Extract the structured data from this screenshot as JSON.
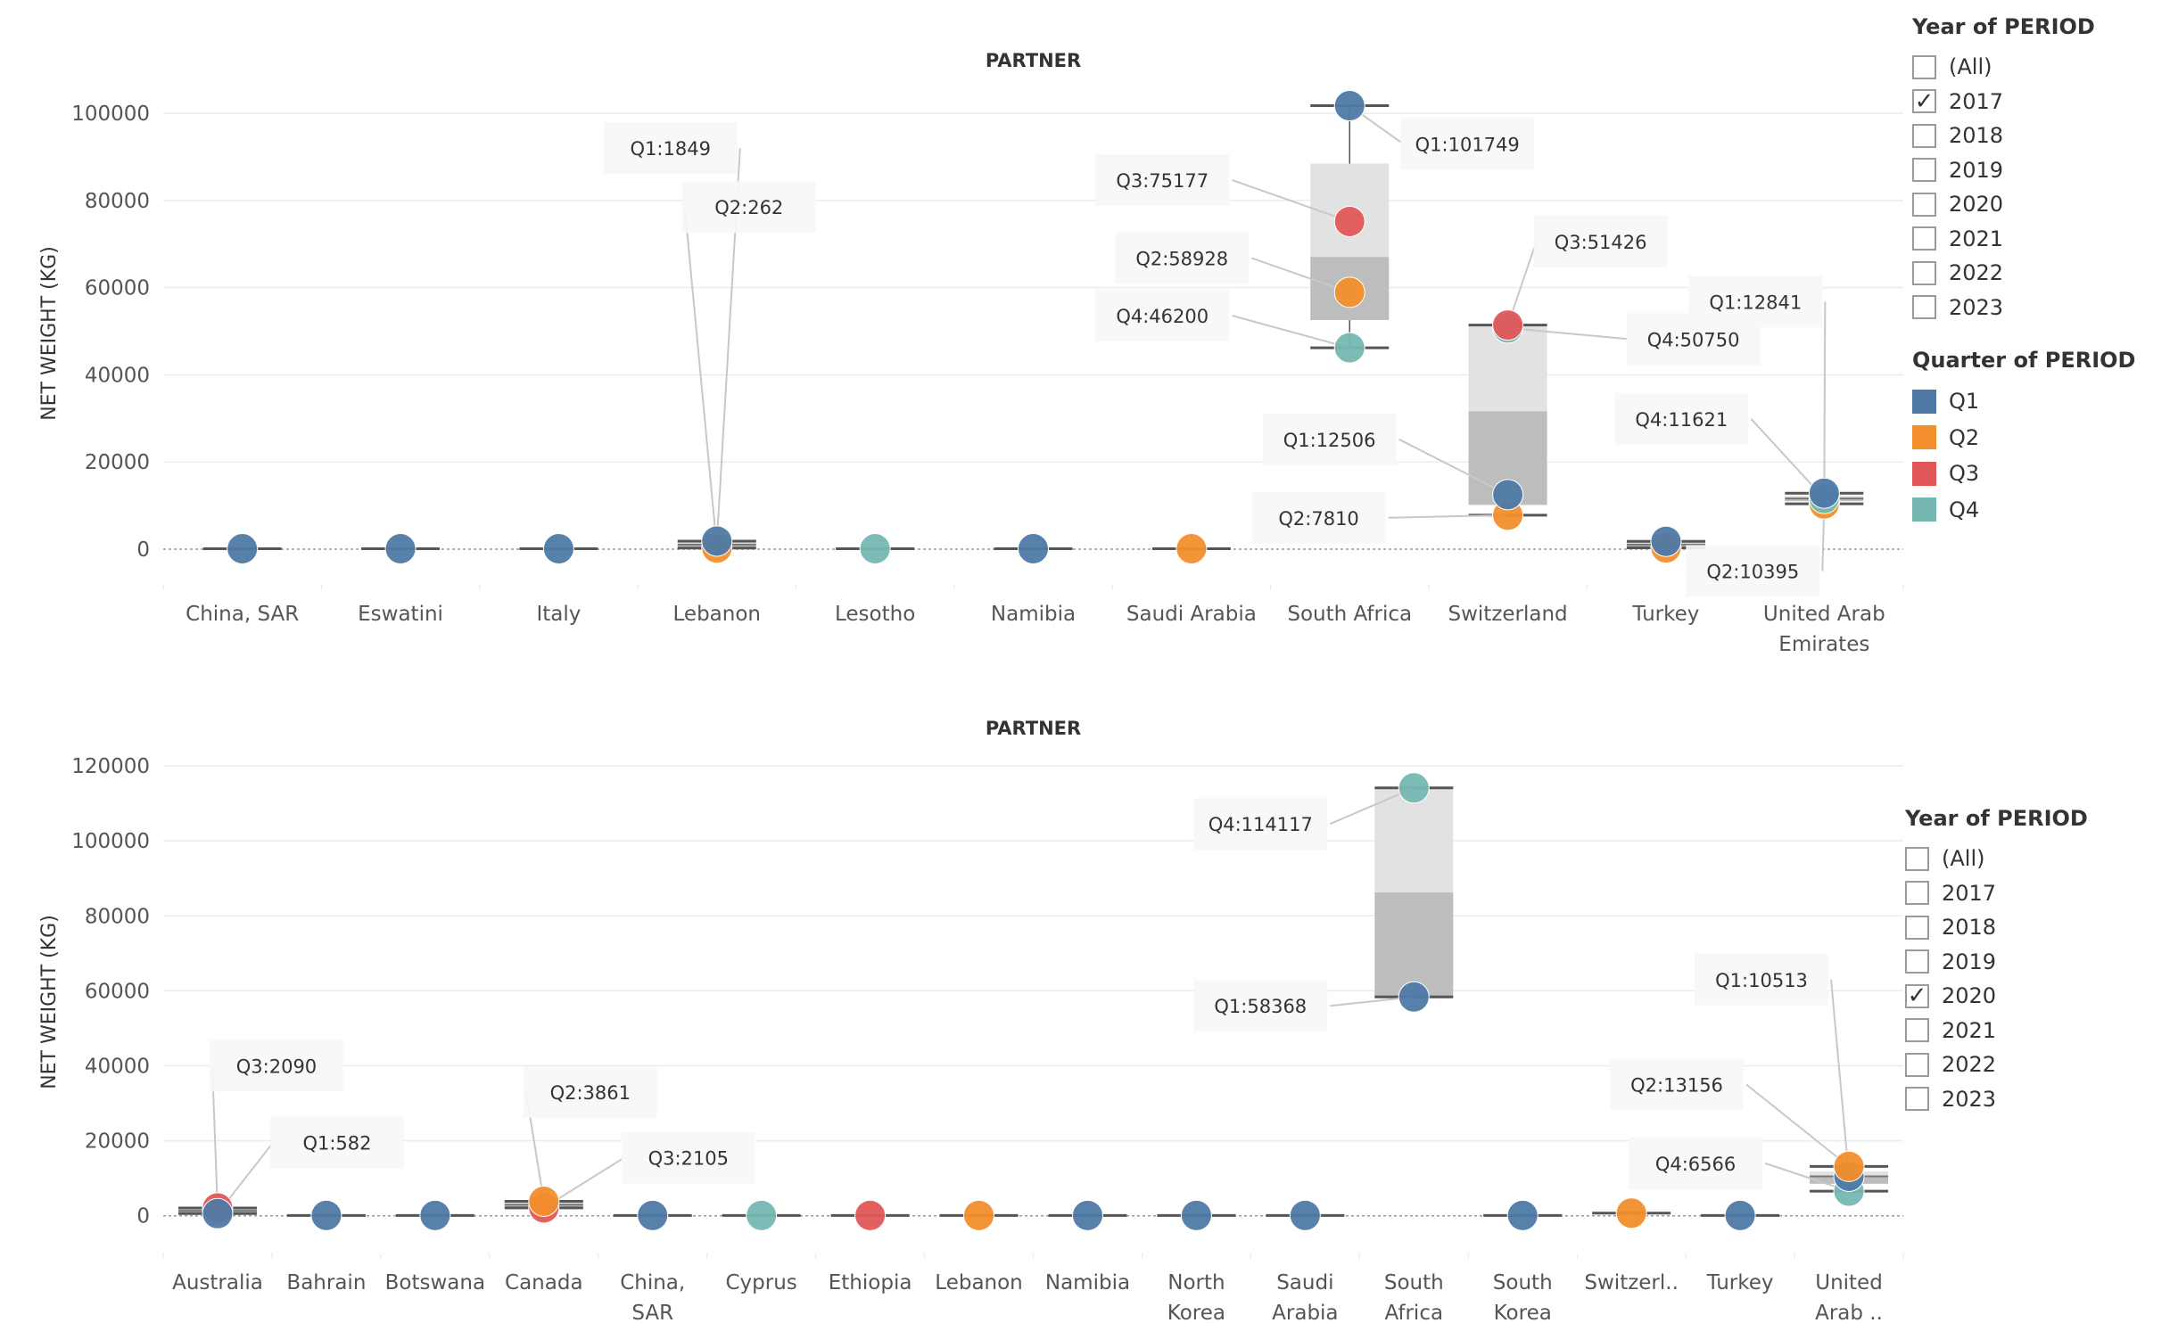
{
  "colors": {
    "Q1": "#4e79a7",
    "Q2": "#f28e2b",
    "Q3": "#e15759",
    "Q4": "#76b7b2"
  },
  "year_filter_top": {
    "title": "Year of PERIOD",
    "options": [
      "(All)",
      "2017",
      "2018",
      "2019",
      "2020",
      "2021",
      "2022",
      "2023"
    ],
    "checked": "2017"
  },
  "quarter_legend": {
    "title": "Quarter of PERIOD",
    "items": [
      {
        "label": "Q1",
        "color": "#4e79a7"
      },
      {
        "label": "Q2",
        "color": "#f28e2b"
      },
      {
        "label": "Q3",
        "color": "#e15759"
      },
      {
        "label": "Q4",
        "color": "#76b7b2"
      }
    ]
  },
  "year_filter_bottom": {
    "title": "Year of PERIOD",
    "options": [
      "(All)",
      "2017",
      "2018",
      "2019",
      "2020",
      "2021",
      "2022",
      "2023"
    ],
    "checked": "2020"
  },
  "chart_data": [
    {
      "type": "scatter",
      "subtype": "dot-plot with box plots",
      "title": "PARTNER",
      "ylabel": "NET WEIGHT (KG)",
      "ylim": [
        -9000,
        108000
      ],
      "yticks": [
        0,
        20000,
        40000,
        60000,
        80000,
        100000
      ],
      "categories": [
        [
          "China, SAR"
        ],
        [
          "Eswatini"
        ],
        [
          "Italy"
        ],
        [
          "Lebanon"
        ],
        [
          "Lesotho"
        ],
        [
          "Namibia"
        ],
        [
          "Saudi Arabia"
        ],
        [
          "South Africa"
        ],
        [
          "Switzerland"
        ],
        [
          "Turkey"
        ],
        [
          "United Arab",
          "Emirates"
        ]
      ],
      "points": [
        {
          "cat": 0,
          "q": "Q1",
          "value": 100
        },
        {
          "cat": 1,
          "q": "Q1",
          "value": 100
        },
        {
          "cat": 2,
          "q": "Q1",
          "value": 100
        },
        {
          "cat": 3,
          "q": "Q2",
          "value": 262
        },
        {
          "cat": 3,
          "q": "Q1",
          "value": 1849
        },
        {
          "cat": 4,
          "q": "Q4",
          "value": 100
        },
        {
          "cat": 5,
          "q": "Q1",
          "value": 100
        },
        {
          "cat": 6,
          "q": "Q2",
          "value": 100
        },
        {
          "cat": 7,
          "q": "Q4",
          "value": 46200
        },
        {
          "cat": 7,
          "q": "Q2",
          "value": 58928
        },
        {
          "cat": 7,
          "q": "Q3",
          "value": 75177
        },
        {
          "cat": 7,
          "q": "Q1",
          "value": 101749
        },
        {
          "cat": 8,
          "q": "Q2",
          "value": 7810
        },
        {
          "cat": 8,
          "q": "Q1",
          "value": 12506
        },
        {
          "cat": 8,
          "q": "Q4",
          "value": 50750
        },
        {
          "cat": 8,
          "q": "Q3",
          "value": 51426
        },
        {
          "cat": 9,
          "q": "Q2",
          "value": 300
        },
        {
          "cat": 9,
          "q": "Q1",
          "value": 1800
        },
        {
          "cat": 10,
          "q": "Q2",
          "value": 10395
        },
        {
          "cat": 10,
          "q": "Q4",
          "value": 11621
        },
        {
          "cat": 10,
          "q": "Q1",
          "value": 12841
        }
      ],
      "boxes": [
        {
          "cat": 3,
          "whisker_low": 262,
          "q1": 262,
          "median": 1056,
          "q3": 1849,
          "whisker_high": 1849
        },
        {
          "cat": 7,
          "whisker_low": 46200,
          "q1": 52564,
          "median": 67052,
          "q3": 88463,
          "whisker_high": 101749
        },
        {
          "cat": 8,
          "whisker_low": 7810,
          "q1": 10158,
          "median": 31628,
          "q3": 51088,
          "whisker_high": 51426
        },
        {
          "cat": 9,
          "whisker_low": 300,
          "q1": 300,
          "median": 1050,
          "q3": 1800,
          "whisker_high": 1800
        },
        {
          "cat": 10,
          "whisker_low": 10395,
          "q1": 11008,
          "median": 11621,
          "q3": 12231,
          "whisker_high": 12841
        }
      ],
      "annotations": [
        {
          "cat": 3,
          "value": 1849,
          "prefix": "Q1:",
          "text": "1849",
          "lx": -52,
          "ly": 92000
        },
        {
          "cat": 3,
          "value": 262,
          "prefix": "Q2:",
          "text": "262",
          "lx": 36,
          "ly": 78500
        },
        {
          "cat": 7,
          "value": 101749,
          "prefix": "Q1:",
          "text": "101749",
          "lx": 132,
          "ly": 93000
        },
        {
          "cat": 7,
          "value": 75177,
          "prefix": "Q3:",
          "text": "75177",
          "lx": -210,
          "ly": 84700
        },
        {
          "cat": 7,
          "value": 58928,
          "prefix": "Q2:",
          "text": "58928",
          "lx": -188,
          "ly": 66800
        },
        {
          "cat": 7,
          "value": 46200,
          "prefix": "Q4:",
          "text": "46200",
          "lx": -210,
          "ly": 53600
        },
        {
          "cat": 8,
          "value": 51426,
          "prefix": "Q3:",
          "text": "51426",
          "lx": 104,
          "ly": 70600
        },
        {
          "cat": 8,
          "value": 50750,
          "prefix": "Q4:",
          "text": "50750",
          "lx": 208,
          "ly": 48200
        },
        {
          "cat": 8,
          "value": 12506,
          "prefix": "Q1:",
          "text": "12506",
          "lx": -200,
          "ly": 25200
        },
        {
          "cat": 8,
          "value": 7810,
          "prefix": "Q2:",
          "text": "7810",
          "lx": -212,
          "ly": 7200
        },
        {
          "cat": 10,
          "value": 12841,
          "prefix": "Q1:",
          "text": "12841",
          "lx": -77,
          "ly": 56800
        },
        {
          "cat": 10,
          "value": 11621,
          "prefix": "Q4:",
          "text": "11621",
          "lx": -160,
          "ly": 29900
        },
        {
          "cat": 10,
          "value": 10395,
          "prefix": "Q2:",
          "text": "10395",
          "lx": -80,
          "ly": -5000
        }
      ]
    },
    {
      "type": "scatter",
      "subtype": "dot-plot with box plots",
      "title": "PARTNER",
      "ylabel": "NET WEIGHT (KG)",
      "ylim": [
        -11000,
        125000
      ],
      "yticks": [
        0,
        20000,
        40000,
        60000,
        80000,
        100000,
        120000
      ],
      "categories": [
        [
          "Australia"
        ],
        [
          "Bahrain"
        ],
        [
          "Botswana"
        ],
        [
          "Canada"
        ],
        [
          "China,",
          "SAR"
        ],
        [
          "Cyprus"
        ],
        [
          "Ethiopia"
        ],
        [
          "Lebanon"
        ],
        [
          "Namibia"
        ],
        [
          "North",
          "Korea"
        ],
        [
          "Saudi",
          "Arabia"
        ],
        [
          "South",
          "Africa"
        ],
        [
          "South",
          "Korea"
        ],
        [
          "Switzerl.."
        ],
        [
          "Turkey"
        ],
        [
          "United",
          "Arab .."
        ]
      ],
      "points": [
        {
          "cat": 0,
          "q": "Q3",
          "value": 2090
        },
        {
          "cat": 0,
          "q": "Q1",
          "value": 582
        },
        {
          "cat": 1,
          "q": "Q1",
          "value": 100
        },
        {
          "cat": 2,
          "q": "Q1",
          "value": 100
        },
        {
          "cat": 3,
          "q": "Q3",
          "value": 2105
        },
        {
          "cat": 3,
          "q": "Q2",
          "value": 3861
        },
        {
          "cat": 4,
          "q": "Q1",
          "value": 100
        },
        {
          "cat": 5,
          "q": "Q4",
          "value": 100
        },
        {
          "cat": 6,
          "q": "Q3",
          "value": 100
        },
        {
          "cat": 7,
          "q": "Q2",
          "value": 100
        },
        {
          "cat": 8,
          "q": "Q1",
          "value": 100
        },
        {
          "cat": 9,
          "q": "Q1",
          "value": 100
        },
        {
          "cat": 10,
          "q": "Q1",
          "value": 100
        },
        {
          "cat": 11,
          "q": "Q1",
          "value": 58368
        },
        {
          "cat": 11,
          "q": "Q4",
          "value": 114117
        },
        {
          "cat": 12,
          "q": "Q1",
          "value": 100
        },
        {
          "cat": 13,
          "q": "Q2",
          "value": 700
        },
        {
          "cat": 14,
          "q": "Q1",
          "value": 100
        },
        {
          "cat": 15,
          "q": "Q4",
          "value": 6566
        },
        {
          "cat": 15,
          "q": "Q1",
          "value": 10513
        },
        {
          "cat": 15,
          "q": "Q2",
          "value": 13156
        }
      ],
      "boxes": [
        {
          "cat": 0,
          "whisker_low": 582,
          "q1": 582,
          "median": 1336,
          "q3": 2090,
          "whisker_high": 2090
        },
        {
          "cat": 3,
          "whisker_low": 2105,
          "q1": 2105,
          "median": 2983,
          "q3": 3861,
          "whisker_high": 3861
        },
        {
          "cat": 11,
          "whisker_low": 58368,
          "q1": 58368,
          "median": 86243,
          "q3": 114117,
          "whisker_high": 114117
        },
        {
          "cat": 15,
          "whisker_low": 6566,
          "q1": 8540,
          "median": 10513,
          "q3": 11835,
          "whisker_high": 13156
        }
      ],
      "annotations": [
        {
          "cat": 0,
          "value": 2090,
          "prefix": "Q3:",
          "text": "2090",
          "lx": 66,
          "ly": 40000
        },
        {
          "cat": 0,
          "value": 582,
          "prefix": "Q1:",
          "text": "582",
          "lx": 134,
          "ly": 19500
        },
        {
          "cat": 3,
          "value": 3861,
          "prefix": "Q2:",
          "text": "3861",
          "lx": 52,
          "ly": 33000
        },
        {
          "cat": 3,
          "value": 2105,
          "prefix": "Q3:",
          "text": "2105",
          "lx": 162,
          "ly": 15500
        },
        {
          "cat": 11,
          "value": 114117,
          "prefix": "Q4:",
          "text": "114117",
          "lx": -172,
          "ly": 104500
        },
        {
          "cat": 11,
          "value": 58368,
          "prefix": "Q1:",
          "text": "58368",
          "lx": -172,
          "ly": 56000
        },
        {
          "cat": 15,
          "value": 10513,
          "prefix": "Q1:",
          "text": "10513",
          "lx": -98,
          "ly": 63000
        },
        {
          "cat": 15,
          "value": 13156,
          "prefix": "Q2:",
          "text": "13156",
          "lx": -193,
          "ly": 35000
        },
        {
          "cat": 15,
          "value": 6566,
          "prefix": "Q4:",
          "text": "6566",
          "lx": -172,
          "ly": 14000
        }
      ]
    }
  ]
}
